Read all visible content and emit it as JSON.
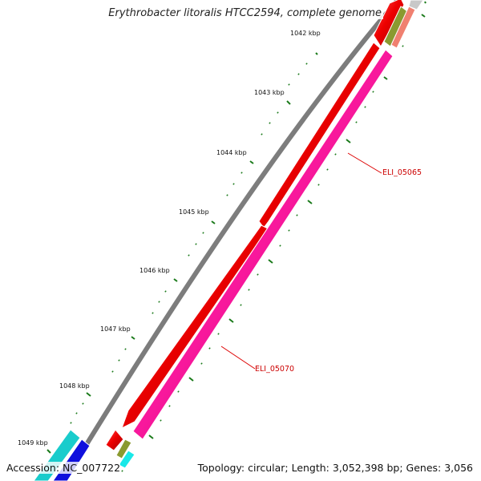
{
  "title": "Erythrobacter litoralis HTCC2594, complete genome",
  "footer": {
    "accession": "Accession: NC_007722",
    "topology": "Topology: circular; Length: 3,052,398 bp; Genes: 3,056"
  },
  "scale": {
    "unit": "kbp",
    "ticks": [
      "1042 kbp",
      "1043 kbp",
      "1044 kbp",
      "1045 kbp",
      "1046 kbp",
      "1047 kbp",
      "1048 kbp",
      "1049 kbp"
    ]
  },
  "gene_labels": [
    "ELI_05065",
    "ELI_05070"
  ],
  "colors": {
    "forward_cds": "#ee0000",
    "reverse_cds": "#ff1aa0",
    "backbone": "#8a8a8a",
    "tick": "#1a7a1a",
    "cyan_feature": "#19cccc",
    "blue_feature": "#1010dd",
    "olive_feature": "#8a9a30",
    "salmon_feature": "#f08070",
    "label_line": "#dd0000"
  }
}
